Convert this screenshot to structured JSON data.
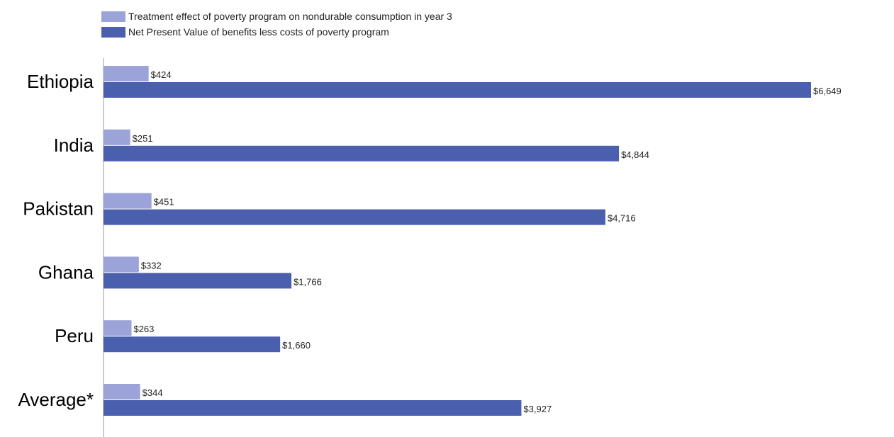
{
  "chart_data": {
    "type": "bar",
    "orientation": "horizontal",
    "categories": [
      "Ethiopia",
      "India",
      "Pakistan",
      "Ghana",
      "Peru",
      "Average*"
    ],
    "series": [
      {
        "name": "Treatment effect of poverty program on nondurable consumption in year 3",
        "color": "#9ba3d8",
        "values": [
          424,
          251,
          451,
          332,
          263,
          344
        ],
        "labels": [
          "$424",
          "$251",
          "$451",
          "$332",
          "$263",
          "$344"
        ]
      },
      {
        "name": "Net Present Value of benefits less costs of poverty program",
        "color": "#4a5fad",
        "values": [
          6649,
          4844,
          4716,
          1766,
          1660,
          3927
        ],
        "labels": [
          "$6,649",
          "$4,844",
          "$4,716",
          "$1,766",
          "$1,660",
          "$3,927"
        ]
      }
    ],
    "xlim": [
      0,
      6649
    ],
    "grid": false,
    "legend_position": "top-left"
  }
}
